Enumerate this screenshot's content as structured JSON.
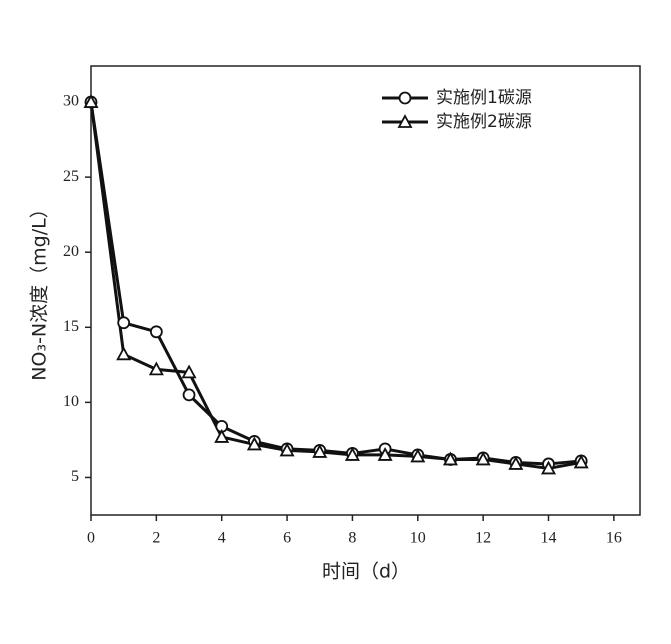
{
  "chart_data": {
    "type": "line",
    "x_label": "时间（d）",
    "y_label": "NO₃-N浓度（mg/L）",
    "x": [
      0,
      1,
      2,
      3,
      4,
      5,
      6,
      7,
      8,
      9,
      10,
      11,
      12,
      13,
      14,
      15
    ],
    "series": [
      {
        "name": "实施例1碳源",
        "marker": "circle",
        "color": "#111111",
        "values": [
          30,
          15.3,
          14.7,
          10.5,
          8.4,
          7.4,
          6.9,
          6.8,
          6.6,
          6.9,
          6.5,
          6.2,
          6.3,
          6.0,
          5.9,
          6.1
        ]
      },
      {
        "name": "实施例2碳源",
        "marker": "triangle",
        "color": "#111111",
        "values": [
          30,
          13.2,
          12.2,
          12.0,
          7.7,
          7.2,
          6.8,
          6.7,
          6.5,
          6.5,
          6.4,
          6.2,
          6.2,
          5.9,
          5.6,
          6.0
        ]
      }
    ],
    "xlim": [
      0,
      16.8
    ],
    "xticks": [
      0,
      2,
      4,
      6,
      8,
      10,
      12,
      14,
      16
    ],
    "ylim": [
      2.5,
      32.4
    ],
    "yticks": [
      5,
      10,
      15,
      20,
      25,
      30
    ],
    "legend": "top-right",
    "grid": false
  }
}
